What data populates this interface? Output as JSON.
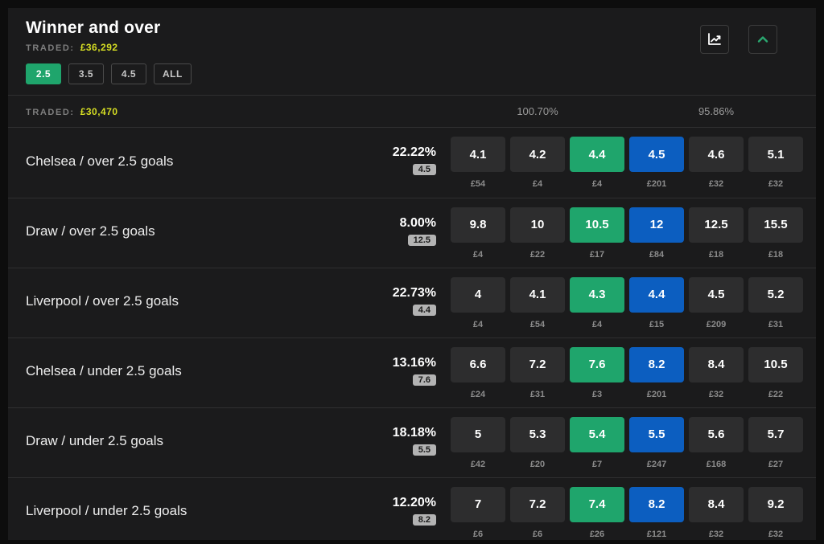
{
  "header": {
    "title": "Winner and over",
    "traded_label": "TRADED:",
    "traded_value": "£36,292",
    "icons": [
      "chart-line-icon",
      "chevron-up-icon"
    ]
  },
  "tabs": [
    {
      "label": "2.5",
      "active": true
    },
    {
      "label": "3.5",
      "active": false
    },
    {
      "label": "4.5",
      "active": false
    },
    {
      "label": "ALL",
      "active": false
    }
  ],
  "subheader": {
    "traded_label": "TRADED:",
    "traded_value": "£30,470",
    "back_book_percent": "100.70%",
    "lay_book_percent": "95.86%"
  },
  "colors": {
    "bg": "#0d0d0d",
    "panel": "#1b1b1c",
    "cell": "#2d2d2e",
    "back": "#1fa56c",
    "lay": "#0c5ec0",
    "yellow": "#d6de23",
    "divider": "#2f2f30",
    "dim": "#8c8c8c",
    "badge-bg": "#b3b3b3"
  },
  "rows": [
    {
      "label": "Chelsea / over 2.5 goals",
      "percent": "22.22%",
      "last_traded": "4.5",
      "cells": [
        {
          "price": "4.1",
          "volume": "£54",
          "type": "plain"
        },
        {
          "price": "4.2",
          "volume": "£4",
          "type": "plain"
        },
        {
          "price": "4.4",
          "volume": "£4",
          "type": "back"
        },
        {
          "price": "4.5",
          "volume": "£201",
          "type": "lay"
        },
        {
          "price": "4.6",
          "volume": "£32",
          "type": "plain"
        },
        {
          "price": "5.1",
          "volume": "£32",
          "type": "plain"
        }
      ]
    },
    {
      "label": "Draw / over 2.5 goals",
      "percent": "8.00%",
      "last_traded": "12.5",
      "cells": [
        {
          "price": "9.8",
          "volume": "£4",
          "type": "plain"
        },
        {
          "price": "10",
          "volume": "£22",
          "type": "plain"
        },
        {
          "price": "10.5",
          "volume": "£17",
          "type": "back"
        },
        {
          "price": "12",
          "volume": "£84",
          "type": "lay"
        },
        {
          "price": "12.5",
          "volume": "£18",
          "type": "plain"
        },
        {
          "price": "15.5",
          "volume": "£18",
          "type": "plain"
        }
      ]
    },
    {
      "label": "Liverpool / over 2.5 goals",
      "percent": "22.73%",
      "last_traded": "4.4",
      "cells": [
        {
          "price": "4",
          "volume": "£4",
          "type": "plain"
        },
        {
          "price": "4.1",
          "volume": "£54",
          "type": "plain"
        },
        {
          "price": "4.3",
          "volume": "£4",
          "type": "back"
        },
        {
          "price": "4.4",
          "volume": "£15",
          "type": "lay"
        },
        {
          "price": "4.5",
          "volume": "£209",
          "type": "plain"
        },
        {
          "price": "5.2",
          "volume": "£31",
          "type": "plain"
        }
      ]
    },
    {
      "label": "Chelsea / under 2.5 goals",
      "percent": "13.16%",
      "last_traded": "7.6",
      "cells": [
        {
          "price": "6.6",
          "volume": "£24",
          "type": "plain"
        },
        {
          "price": "7.2",
          "volume": "£31",
          "type": "plain"
        },
        {
          "price": "7.6",
          "volume": "£3",
          "type": "back"
        },
        {
          "price": "8.2",
          "volume": "£201",
          "type": "lay"
        },
        {
          "price": "8.4",
          "volume": "£32",
          "type": "plain"
        },
        {
          "price": "10.5",
          "volume": "£22",
          "type": "plain"
        }
      ]
    },
    {
      "label": "Draw / under 2.5 goals",
      "percent": "18.18%",
      "last_traded": "5.5",
      "cells": [
        {
          "price": "5",
          "volume": "£42",
          "type": "plain"
        },
        {
          "price": "5.3",
          "volume": "£20",
          "type": "plain"
        },
        {
          "price": "5.4",
          "volume": "£7",
          "type": "back"
        },
        {
          "price": "5.5",
          "volume": "£247",
          "type": "lay"
        },
        {
          "price": "5.6",
          "volume": "£168",
          "type": "plain"
        },
        {
          "price": "5.7",
          "volume": "£27",
          "type": "plain"
        }
      ]
    },
    {
      "label": "Liverpool / under 2.5 goals",
      "percent": "12.20%",
      "last_traded": "8.2",
      "cells": [
        {
          "price": "7",
          "volume": "£6",
          "type": "plain"
        },
        {
          "price": "7.2",
          "volume": "£6",
          "type": "plain"
        },
        {
          "price": "7.4",
          "volume": "£26",
          "type": "back"
        },
        {
          "price": "8.2",
          "volume": "£121",
          "type": "lay"
        },
        {
          "price": "8.4",
          "volume": "£32",
          "type": "plain"
        },
        {
          "price": "9.2",
          "volume": "£32",
          "type": "plain"
        }
      ]
    }
  ]
}
